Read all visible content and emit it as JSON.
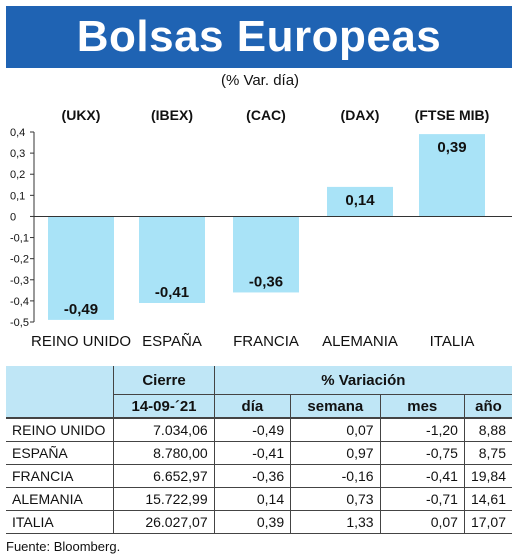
{
  "title": "Bolsas Europeas",
  "subtitle": "(% Var. día)",
  "chart_data": {
    "type": "bar",
    "categories": [
      "REINO UNIDO",
      "ESPAÑA",
      "FRANCIA",
      "ALEMANIA",
      "ITALIA"
    ],
    "index_labels": [
      "(UKX)",
      "(IBEX)",
      "(CAC)",
      "(DAX)",
      "(FTSE MIB)"
    ],
    "values": [
      -0.49,
      -0.41,
      -0.36,
      0.14,
      0.39
    ],
    "value_labels": [
      "-0,49",
      "-0,41",
      "-0,36",
      "0,14",
      "0,39"
    ],
    "yticks": [
      "0,4",
      "0,3",
      "0,2",
      "0,1",
      "0",
      "-0,1",
      "-0,2",
      "-0,3",
      "-0,4",
      "-0,5"
    ],
    "ytick_values": [
      0.4,
      0.3,
      0.2,
      0.1,
      0,
      -0.1,
      -0.2,
      -0.3,
      -0.4,
      -0.5
    ],
    "ylim": [
      -0.5,
      0.4
    ],
    "grid": false,
    "bar_color": "#a9e3f7"
  },
  "table": {
    "header_cierre": "Cierre",
    "header_variacion": "% Variación",
    "header_date": "14-09-´21",
    "header_dia": "día",
    "header_semana": "semana",
    "header_mes": "mes",
    "header_ano": "año",
    "rows": [
      {
        "name": "REINO UNIDO",
        "cierre": "7.034,06",
        "dia": "-0,49",
        "semana": "0,07",
        "mes": "-1,20",
        "ano": "8,88"
      },
      {
        "name": "ESPAÑA",
        "cierre": "8.780,00",
        "dia": "-0,41",
        "semana": "0,97",
        "mes": "-0,75",
        "ano": "8,75"
      },
      {
        "name": "FRANCIA",
        "cierre": "6.652,97",
        "dia": "-0,36",
        "semana": "-0,16",
        "mes": "-0,41",
        "ano": "19,84"
      },
      {
        "name": "ALEMANIA",
        "cierre": "15.722,99",
        "dia": "0,14",
        "semana": "0,73",
        "mes": "-0,71",
        "ano": "14,61"
      },
      {
        "name": "ITALIA",
        "cierre": "26.027,07",
        "dia": "0,39",
        "semana": "1,33",
        "mes": "0,07",
        "ano": "17,07"
      }
    ]
  },
  "source": "Fuente: Bloomberg.",
  "colors": {
    "title_bar": "#1f63b3",
    "table_header": "#bfe6f6"
  }
}
